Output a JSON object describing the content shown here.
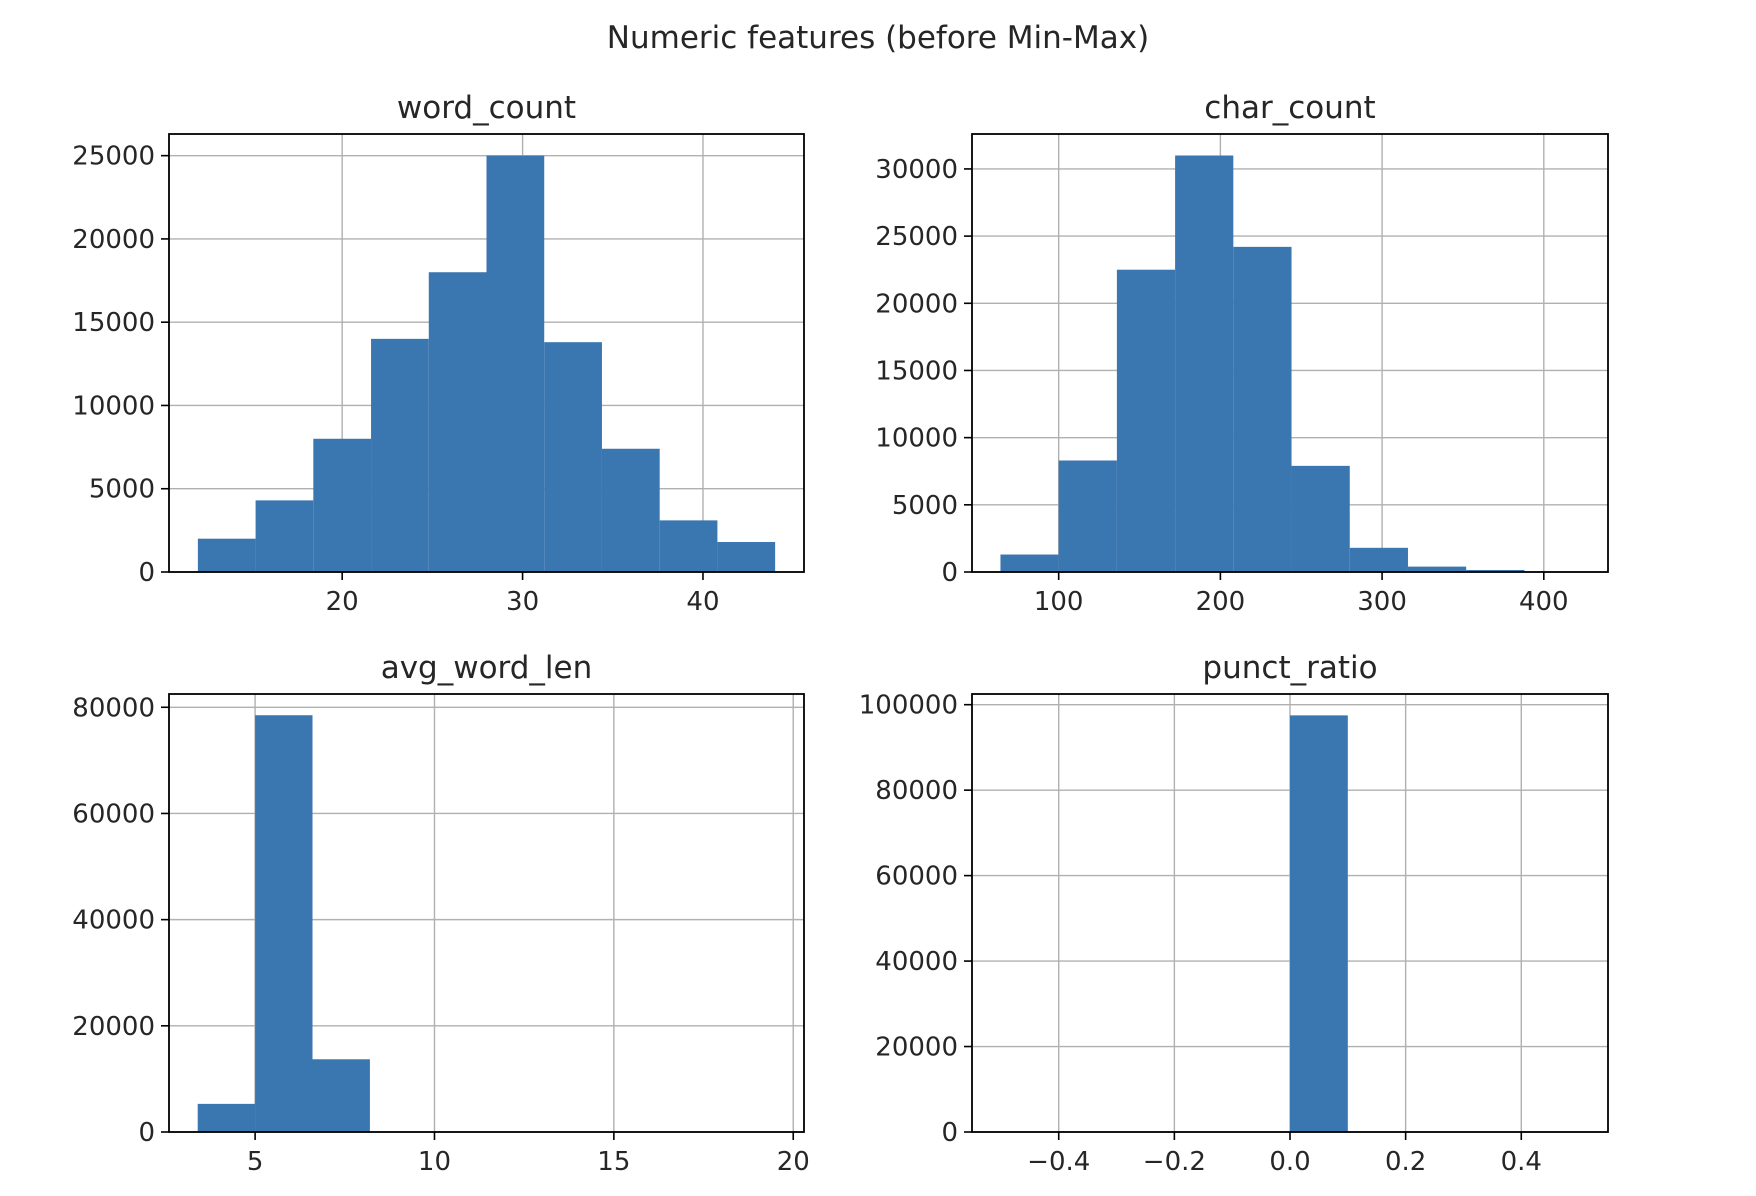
{
  "figure": {
    "title": "Numeric features (before Min-Max)"
  },
  "colors": {
    "bar": "#3a76b0",
    "grid": "#b0b0b0",
    "axis": "#000000"
  },
  "chart_data": [
    {
      "type": "bar",
      "subtype": "histogram",
      "title": "word_count",
      "xlabel": "",
      "ylabel": "",
      "xlim": [
        10.4,
        45.6
      ],
      "ylim": [
        0,
        26300
      ],
      "xticks": [
        20,
        30,
        40
      ],
      "xtick_labels": [
        "20",
        "30",
        "40"
      ],
      "yticks": [
        0,
        5000,
        10000,
        15000,
        20000,
        25000
      ],
      "ytick_labels": [
        "0",
        "5000",
        "10000",
        "15000",
        "20000",
        "25000"
      ],
      "grid": true,
      "bin_edges": [
        12.0,
        15.2,
        18.4,
        21.6,
        24.8,
        28.0,
        31.2,
        34.4,
        37.6,
        40.8,
        44.0
      ],
      "values": [
        2000,
        4300,
        8000,
        14000,
        18000,
        25000,
        13800,
        7400,
        3100,
        1800
      ]
    },
    {
      "type": "bar",
      "subtype": "histogram",
      "title": "char_count",
      "xlabel": "",
      "ylabel": "",
      "xlim": [
        46.4,
        439.7
      ],
      "ylim": [
        0,
        32600
      ],
      "xticks": [
        100,
        200,
        300,
        400
      ],
      "xtick_labels": [
        "100",
        "200",
        "300",
        "400"
      ],
      "yticks": [
        0,
        5000,
        10000,
        15000,
        20000,
        25000,
        30000
      ],
      "ytick_labels": [
        "0",
        "5000",
        "10000",
        "15000",
        "20000",
        "25000",
        "30000"
      ],
      "grid": true,
      "bin_edges": [
        64,
        100,
        136,
        172,
        208,
        244,
        280,
        316,
        352,
        388,
        424
      ],
      "values": [
        1300,
        8300,
        22500,
        31000,
        24200,
        7900,
        1800,
        400,
        150,
        40
      ]
    },
    {
      "type": "bar",
      "subtype": "histogram",
      "title": "avg_word_len",
      "xlabel": "",
      "ylabel": "",
      "xlim": [
        2.6,
        20.3
      ],
      "ylim": [
        0,
        82500
      ],
      "xticks": [
        5,
        10,
        15,
        20
      ],
      "xtick_labels": [
        "5",
        "10",
        "15",
        "20"
      ],
      "yticks": [
        0,
        20000,
        40000,
        60000,
        80000
      ],
      "ytick_labels": [
        "0",
        "20000",
        "40000",
        "60000",
        "80000"
      ],
      "grid": true,
      "bin_edges": [
        3.4,
        5.0,
        6.6,
        8.2,
        9.8,
        11.4,
        13.0,
        14.6,
        16.2,
        17.8,
        19.4
      ],
      "values": [
        5300,
        78500,
        13700,
        0,
        0,
        0,
        0,
        0,
        0,
        0
      ]
    },
    {
      "type": "bar",
      "subtype": "histogram",
      "title": "punct_ratio",
      "xlabel": "",
      "ylabel": "",
      "xlim": [
        -0.55,
        0.55
      ],
      "ylim": [
        0,
        102500
      ],
      "xticks": [
        -0.4,
        -0.2,
        0.0,
        0.2,
        0.4
      ],
      "xtick_labels": [
        "−0.4",
        "−0.2",
        "0.0",
        "0.2",
        "0.4"
      ],
      "yticks": [
        0,
        20000,
        40000,
        60000,
        80000,
        100000
      ],
      "ytick_labels": [
        "0",
        "20000",
        "40000",
        "60000",
        "80000",
        "100000"
      ],
      "grid": true,
      "bin_edges": [
        -0.5,
        -0.4,
        -0.3,
        -0.2,
        -0.1,
        0.0,
        0.1,
        0.2,
        0.3,
        0.4,
        0.5
      ],
      "values": [
        0,
        0,
        0,
        0,
        0,
        97500,
        0,
        0,
        0,
        0
      ]
    }
  ]
}
